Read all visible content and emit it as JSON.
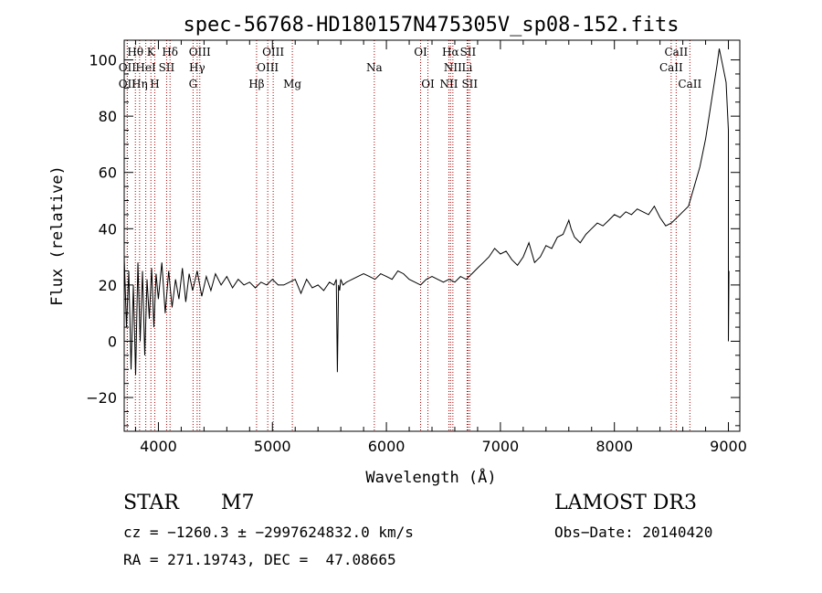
{
  "chart_data": {
    "type": "line",
    "title": "spec-56768-HD180157N475305V_sp08-152.fits",
    "xlabel": "Wavelength (Å)",
    "ylabel": "Flux (relative)",
    "xlim": [
      3700,
      9100
    ],
    "ylim": [
      -32,
      107
    ],
    "x_ticks": [
      {
        "v": 4000,
        "label": "4000"
      },
      {
        "v": 5000,
        "label": "5000"
      },
      {
        "v": 6000,
        "label": "6000"
      },
      {
        "v": 7000,
        "label": "7000"
      },
      {
        "v": 8000,
        "label": "8000"
      },
      {
        "v": 9000,
        "label": "9000"
      }
    ],
    "y_ticks": [
      {
        "v": -20,
        "label": "−20"
      },
      {
        "v": 0,
        "label": "0"
      },
      {
        "v": 20,
        "label": "20"
      },
      {
        "v": 40,
        "label": "40"
      },
      {
        "v": 60,
        "label": "60"
      },
      {
        "v": 80,
        "label": "80"
      },
      {
        "v": 100,
        "label": "100"
      }
    ],
    "series": [
      {
        "name": "flux",
        "x": [
          3700,
          3720,
          3740,
          3760,
          3780,
          3800,
          3820,
          3840,
          3860,
          3880,
          3900,
          3920,
          3940,
          3960,
          3980,
          4000,
          4030,
          4060,
          4090,
          4120,
          4150,
          4180,
          4210,
          4240,
          4270,
          4300,
          4340,
          4380,
          4420,
          4460,
          4500,
          4550,
          4600,
          4650,
          4700,
          4750,
          4800,
          4850,
          4900,
          4950,
          5000,
          5050,
          5100,
          5150,
          5200,
          5250,
          5300,
          5350,
          5400,
          5450,
          5500,
          5540,
          5560,
          5570,
          5580,
          5590,
          5600,
          5620,
          5650,
          5700,
          5750,
          5800,
          5850,
          5900,
          5950,
          6000,
          6050,
          6100,
          6150,
          6200,
          6250,
          6300,
          6350,
          6400,
          6450,
          6500,
          6550,
          6600,
          6650,
          6700,
          6750,
          6800,
          6850,
          6900,
          6950,
          7000,
          7050,
          7100,
          7150,
          7200,
          7250,
          7300,
          7350,
          7400,
          7450,
          7500,
          7550,
          7600,
          7620,
          7650,
          7700,
          7750,
          7800,
          7850,
          7900,
          7950,
          8000,
          8050,
          8100,
          8150,
          8200,
          8250,
          8300,
          8350,
          8400,
          8450,
          8500,
          8550,
          8600,
          8650,
          8700,
          8750,
          8800,
          8850,
          8900,
          8920,
          8950,
          8980,
          9000,
          9000,
          9005
        ],
        "y": [
          30,
          5,
          25,
          -10,
          20,
          -12,
          28,
          0,
          25,
          -5,
          22,
          8,
          26,
          5,
          24,
          15,
          28,
          10,
          25,
          12,
          22,
          15,
          26,
          14,
          24,
          18,
          25,
          16,
          23,
          18,
          24,
          20,
          23,
          19,
          22,
          20,
          21,
          19,
          21,
          20,
          22,
          20,
          20,
          21,
          22,
          17,
          22,
          19,
          20,
          18,
          21,
          20,
          22,
          -11,
          20,
          18,
          22,
          20,
          21,
          22,
          23,
          24,
          23,
          22,
          24,
          23,
          22,
          25,
          24,
          22,
          21,
          20,
          22,
          23,
          22,
          21,
          22,
          21,
          23,
          22,
          24,
          26,
          28,
          30,
          33,
          31,
          32,
          29,
          27,
          30,
          35,
          28,
          30,
          34,
          33,
          37,
          38,
          43,
          40,
          37,
          35,
          38,
          40,
          42,
          41,
          43,
          45,
          44,
          46,
          45,
          47,
          46,
          45,
          48,
          44,
          41,
          42,
          44,
          46,
          48,
          55,
          62,
          72,
          85,
          98,
          104,
          98,
          92,
          75,
          0,
          25
        ]
      }
    ],
    "lines": [
      {
        "name": "OII",
        "wl": 3727,
        "label": "OII",
        "row": 2
      },
      {
        "name": "Hθ",
        "wl": 3798,
        "label": "Hθ",
        "row": 1
      },
      {
        "name": "OII",
        "wl": 3727,
        "label": "OII",
        "row": 3
      },
      {
        "name": "Hη",
        "wl": 3835,
        "label": "Hη",
        "row": 3
      },
      {
        "name": "HeI",
        "wl": 3889,
        "label": "HeI",
        "row": 2
      },
      {
        "name": "K",
        "wl": 3934,
        "label": "K",
        "row": 1
      },
      {
        "name": "H",
        "wl": 3968,
        "label": "H",
        "row": 3
      },
      {
        "name": "SII",
        "wl": 4072,
        "label": "SII",
        "row": 2
      },
      {
        "name": "Hδ",
        "wl": 4102,
        "label": "Hδ",
        "row": 1
      },
      {
        "name": "G",
        "wl": 4304,
        "label": "G",
        "row": 3
      },
      {
        "name": "Hγ",
        "wl": 4340,
        "label": "Hγ",
        "row": 2
      },
      {
        "name": "OIII",
        "wl": 4363,
        "label": "OIII",
        "row": 1
      },
      {
        "name": "Hβ",
        "wl": 4861,
        "label": "Hβ",
        "row": 3
      },
      {
        "name": "OIII",
        "wl": 4959,
        "label": "OIII",
        "row": 2
      },
      {
        "name": "OIII",
        "wl": 5007,
        "label": "OIII",
        "row": 1
      },
      {
        "name": "Mg",
        "wl": 5175,
        "label": "Mg",
        "row": 3
      },
      {
        "name": "Na",
        "wl": 5894,
        "label": "Na",
        "row": 2
      },
      {
        "name": "OI",
        "wl": 6300,
        "label": "OI",
        "row": 1
      },
      {
        "name": "OI",
        "wl": 6364,
        "label": "OI",
        "row": 3
      },
      {
        "name": "NII",
        "wl": 6548,
        "label": "NII",
        "row": 3
      },
      {
        "name": "Hα",
        "wl": 6563,
        "label": "Hα",
        "row": 1
      },
      {
        "name": "NII",
        "wl": 6583,
        "label": "NII",
        "row": 2
      },
      {
        "name": "Li",
        "wl": 6708,
        "label": "Li",
        "row": 2
      },
      {
        "name": "SII",
        "wl": 6716,
        "label": "SII",
        "row": 1
      },
      {
        "name": "SII",
        "wl": 6731,
        "label": "SII",
        "row": 3
      },
      {
        "name": "CaII",
        "wl": 8498,
        "label": "CaII",
        "row": 2
      },
      {
        "name": "CaII",
        "wl": 8542,
        "label": "CaII",
        "row": 1
      },
      {
        "name": "CaII",
        "wl": 8662,
        "label": "CaII",
        "row": 3
      }
    ]
  },
  "info": {
    "class_label": "STAR",
    "subclass": "M7",
    "cz_line": "cz = −1260.3 ± −2997624832.0 km/s",
    "radec_line": "RA = 271.19743, DEC =  47.08665",
    "survey": "LAMOST DR3",
    "obs_date_line": "Obs−Date: 20140420"
  },
  "colors": {
    "axis": "#000000",
    "spectrum": "#000000",
    "line_marker": "#aa0000"
  }
}
